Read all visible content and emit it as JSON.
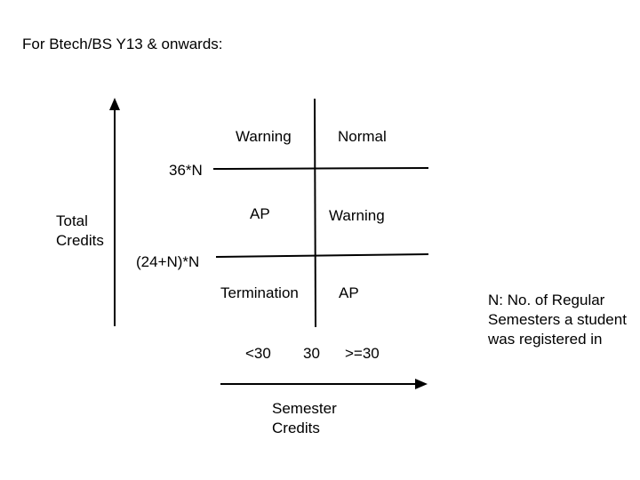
{
  "heading": "For Btech/BS Y13 & onwards:",
  "y_axis": {
    "label_line1": "Total",
    "label_line2": "Credits",
    "threshold_high": "36*N",
    "threshold_low": "(24+N)*N"
  },
  "x_axis": {
    "label_line1": "Semester",
    "label_line2": "Credits",
    "tick_left": "<30",
    "tick_mid": "30",
    "tick_right": ">=30"
  },
  "cells": {
    "top_left": "Warning",
    "top_right": "Normal",
    "middle_left": "AP",
    "middle_right": "Warning",
    "bottom_left": "Termination",
    "bottom_right": "AP"
  },
  "note": {
    "line1": "N: No. of Regular",
    "line2": "Semesters a student",
    "line3": "was registered in"
  },
  "colors": {
    "line": "#000000",
    "text": "#000000",
    "background": "#ffffff"
  }
}
